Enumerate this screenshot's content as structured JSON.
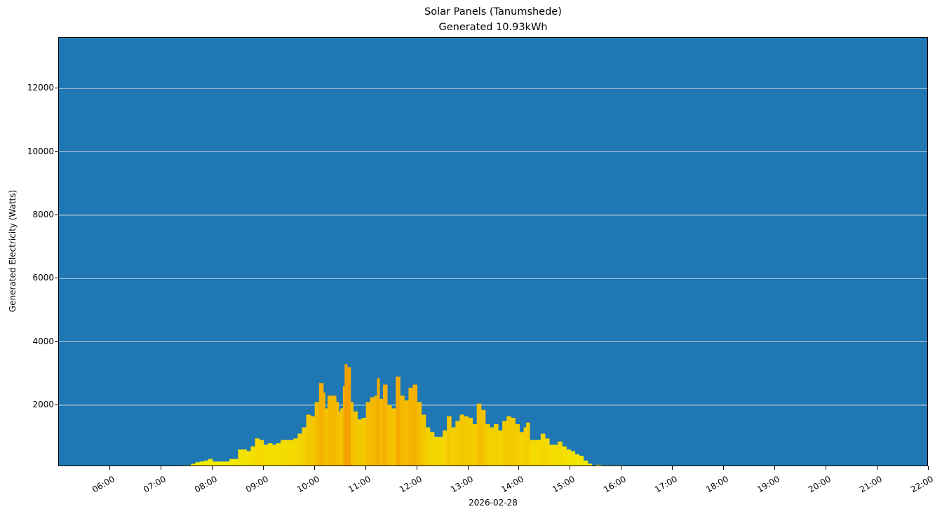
{
  "chart_data": {
    "type": "bar",
    "title": "Solar Panels (Tanumshede)",
    "subtitle": "Generated 10.93kWh",
    "xlabel": "2026-02-28",
    "ylabel": "Generated Electricity (Watts)",
    "xlim": [
      "05:00",
      "22:00"
    ],
    "ylim": [
      50,
      13600
    ],
    "grid": {
      "y": true,
      "x": false,
      "color": "#e8e8e8"
    },
    "legend": null,
    "background_color": "#1f77b4",
    "bar_colormap": "yellow (low) to orange (high)",
    "x_ticks": [
      "06:00",
      "07:00",
      "08:00",
      "09:00",
      "10:00",
      "11:00",
      "12:00",
      "13:00",
      "14:00",
      "15:00",
      "16:00",
      "17:00",
      "18:00",
      "19:00",
      "20:00",
      "21:00",
      "22:00"
    ],
    "y_ticks": [
      2000,
      4000,
      6000,
      8000,
      10000,
      12000
    ],
    "series": [
      {
        "name": "Generated Electricity",
        "x": [
          "07:05",
          "07:10",
          "07:15",
          "07:20",
          "07:25",
          "07:30",
          "07:35",
          "07:40",
          "07:45",
          "07:50",
          "07:55",
          "08:00",
          "08:05",
          "08:10",
          "08:15",
          "08:20",
          "08:25",
          "08:30",
          "08:35",
          "08:40",
          "08:45",
          "08:50",
          "08:55",
          "09:00",
          "09:05",
          "09:10",
          "09:15",
          "09:20",
          "09:25",
          "09:30",
          "09:35",
          "09:40",
          "09:45",
          "09:50",
          "09:55",
          "10:00",
          "10:05",
          "10:10",
          "10:12",
          "10:15",
          "10:20",
          "10:25",
          "10:28",
          "10:30",
          "10:33",
          "10:35",
          "10:38",
          "10:42",
          "10:45",
          "10:50",
          "10:55",
          "11:00",
          "11:05",
          "11:10",
          "11:13",
          "11:16",
          "11:20",
          "11:25",
          "11:30",
          "11:35",
          "11:40",
          "11:45",
          "11:50",
          "11:55",
          "12:00",
          "12:05",
          "12:10",
          "12:15",
          "12:20",
          "12:25",
          "12:30",
          "12:35",
          "12:40",
          "12:45",
          "12:50",
          "12:55",
          "13:00",
          "13:05",
          "13:10",
          "13:15",
          "13:20",
          "13:25",
          "13:30",
          "13:35",
          "13:40",
          "13:45",
          "13:50",
          "13:55",
          "14:00",
          "14:05",
          "14:08",
          "14:12",
          "14:15",
          "14:20",
          "14:25",
          "14:30",
          "14:35",
          "14:40",
          "14:45",
          "14:50",
          "14:55",
          "15:00",
          "15:05",
          "15:10",
          "15:15",
          "15:20",
          "15:25",
          "15:30",
          "15:35",
          "15:40",
          "15:45",
          "15:50",
          "15:55",
          "16:00"
        ],
        "values": [
          60,
          60,
          60,
          60,
          100,
          100,
          150,
          200,
          220,
          250,
          300,
          220,
          220,
          220,
          220,
          300,
          300,
          600,
          600,
          550,
          700,
          950,
          900,
          750,
          800,
          750,
          800,
          900,
          900,
          900,
          950,
          1100,
          1300,
          1700,
          1650,
          2100,
          2700,
          2400,
          1900,
          2300,
          2300,
          2100,
          1800,
          1900,
          2600,
          3300,
          3200,
          2100,
          1800,
          1550,
          1600,
          2100,
          2250,
          2300,
          2850,
          2200,
          2650,
          2000,
          1900,
          2900,
          2300,
          2150,
          2550,
          2650,
          2100,
          1700,
          1300,
          1150,
          1000,
          1000,
          1200,
          1650,
          1300,
          1500,
          1700,
          1650,
          1600,
          1400,
          2050,
          1850,
          1400,
          1300,
          1400,
          1200,
          1500,
          1650,
          1600,
          1400,
          1150,
          1300,
          1450,
          900,
          900,
          900,
          1100,
          950,
          750,
          750,
          850,
          700,
          600,
          550,
          450,
          400,
          250,
          150,
          100,
          120,
          100,
          100,
          100,
          100,
          100,
          60
        ]
      }
    ]
  }
}
